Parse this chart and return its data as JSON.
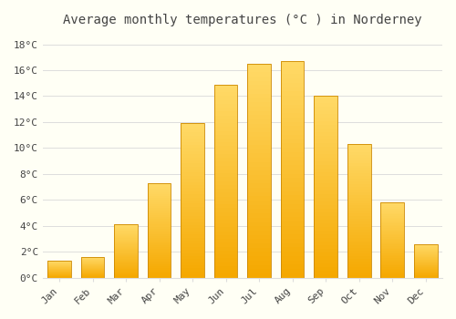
{
  "title": "Average monthly temperatures (°C ) in Norderney",
  "months": [
    "Jan",
    "Feb",
    "Mar",
    "Apr",
    "May",
    "Jun",
    "Jul",
    "Aug",
    "Sep",
    "Oct",
    "Nov",
    "Dec"
  ],
  "temperatures": [
    1.3,
    1.6,
    4.1,
    7.3,
    11.9,
    14.9,
    16.5,
    16.7,
    14.0,
    10.3,
    5.8,
    2.6
  ],
  "bar_color_bottom": "#F5A800",
  "bar_color_top": "#FFD966",
  "bar_edge_color": "#CC8800",
  "background_color": "#FFFFF5",
  "grid_color": "#DDDDDD",
  "text_color": "#444444",
  "ylim": [
    0,
    19
  ],
  "yticks": [
    0,
    2,
    4,
    6,
    8,
    10,
    12,
    14,
    16,
    18
  ],
  "ylabel_suffix": "°C",
  "title_fontsize": 10,
  "tick_fontsize": 8,
  "bar_width": 0.7,
  "gradient_steps": 50
}
